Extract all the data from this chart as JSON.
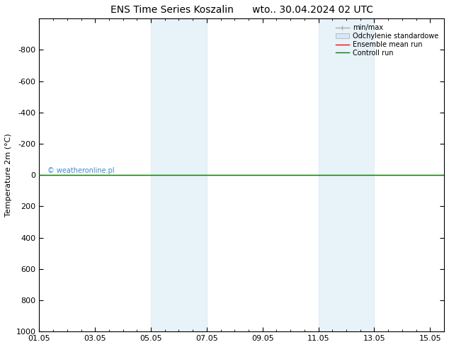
{
  "title": "ENS Time Series Koszalin      wto.. 30.04.2024 02 UTC",
  "ylabel": "Temperature 2m (°C)",
  "xlim_dates": [
    "01.05",
    "03.05",
    "05.05",
    "07.05",
    "09.05",
    "11.05",
    "13.05",
    "15.05"
  ],
  "xlim": [
    0,
    14
  ],
  "ylim_top": -1000,
  "ylim_bottom": 1000,
  "yticks": [
    -800,
    -600,
    -400,
    -200,
    0,
    200,
    400,
    600,
    800,
    1000
  ],
  "shaded_bands": [
    {
      "xstart": 4.0,
      "xend": 6.0
    },
    {
      "xstart": 10.0,
      "xend": 12.0
    }
  ],
  "green_line_y": 0,
  "red_line_y": 0,
  "copyright_text": "© weatheronline.pl",
  "legend_items": [
    {
      "label": "min/max",
      "color": "#aaaaaa",
      "lw": 1.0
    },
    {
      "label": "Odchylenie standardowe",
      "color": "#d6e8f5",
      "lw": 8
    },
    {
      "label": "Ensemble mean run",
      "color": "red",
      "lw": 1.0
    },
    {
      "label": "Controll run",
      "color": "green",
      "lw": 1.0
    }
  ],
  "background_color": "#ffffff",
  "shaded_color": "#d6e8f5",
  "shaded_alpha": 0.55,
  "title_fontsize": 10,
  "tick_fontsize": 8,
  "ylabel_fontsize": 8
}
